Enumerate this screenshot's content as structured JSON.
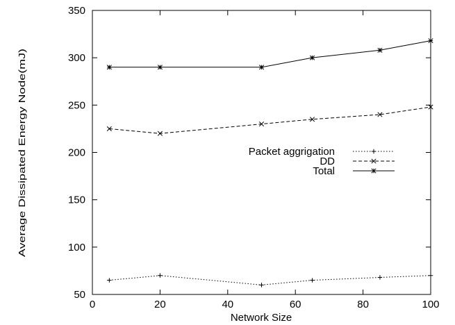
{
  "chart_data": {
    "type": "line",
    "title": "",
    "xlabel": "Network Size",
    "ylabel": "Average Dissipated Energy Node(mJ)",
    "xlim": [
      0,
      100
    ],
    "ylim": [
      50,
      350
    ],
    "xticks": [
      0,
      20,
      40,
      60,
      80,
      100
    ],
    "yticks": [
      50,
      100,
      150,
      200,
      250,
      300,
      350
    ],
    "grid": false,
    "legend_position": "center-right",
    "series": [
      {
        "name": "Packet aggrigation",
        "style": "dotted",
        "marker": "+",
        "x": [
          5,
          20,
          50,
          65,
          85,
          100
        ],
        "y": [
          65,
          70,
          60,
          65,
          68,
          70
        ]
      },
      {
        "name": "DD",
        "style": "dashed",
        "marker": "x",
        "x": [
          5,
          20,
          50,
          65,
          85,
          100
        ],
        "y": [
          225,
          220,
          230,
          235,
          240,
          248
        ]
      },
      {
        "name": "Total",
        "style": "solid",
        "marker": "*",
        "x": [
          5,
          20,
          50,
          65,
          85,
          100
        ],
        "y": [
          290,
          290,
          290,
          300,
          308,
          318
        ]
      }
    ]
  }
}
